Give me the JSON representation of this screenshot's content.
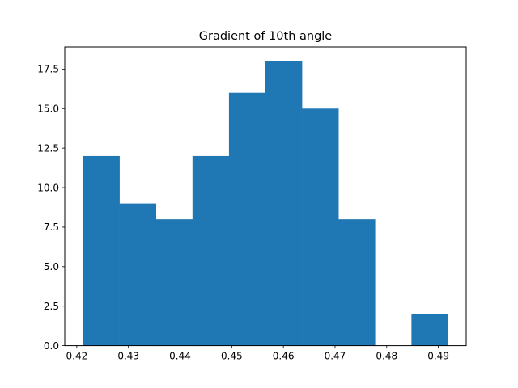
{
  "chart_data": {
    "type": "bar",
    "subtype": "histogram",
    "title": "Gradient of 10th angle",
    "xlabel": "",
    "ylabel": "",
    "bin_edges": [
      0.4212,
      0.428266,
      0.435332,
      0.442398,
      0.449464,
      0.45653,
      0.463596,
      0.470662,
      0.477728,
      0.484794,
      0.49186
    ],
    "counts": [
      12,
      9,
      8,
      12,
      16,
      18,
      15,
      8,
      0,
      2
    ],
    "xlim": [
      0.41767,
      0.49539
    ],
    "ylim": [
      0,
      18.9
    ],
    "xticks": [
      0.42,
      0.43,
      0.44,
      0.45,
      0.46,
      0.47,
      0.48,
      0.49
    ],
    "xtick_labels": [
      "0.42",
      "0.43",
      "0.44",
      "0.45",
      "0.46",
      "0.47",
      "0.48",
      "0.49"
    ],
    "yticks": [
      0,
      2.5,
      5,
      7.5,
      10,
      12.5,
      15,
      17.5
    ],
    "ytick_labels": [
      "0.0",
      "2.5",
      "5.0",
      "7.5",
      "10.0",
      "12.5",
      "15.0",
      "17.5"
    ],
    "grid": false,
    "legend": "none",
    "bar_color": "#1f77b4"
  }
}
